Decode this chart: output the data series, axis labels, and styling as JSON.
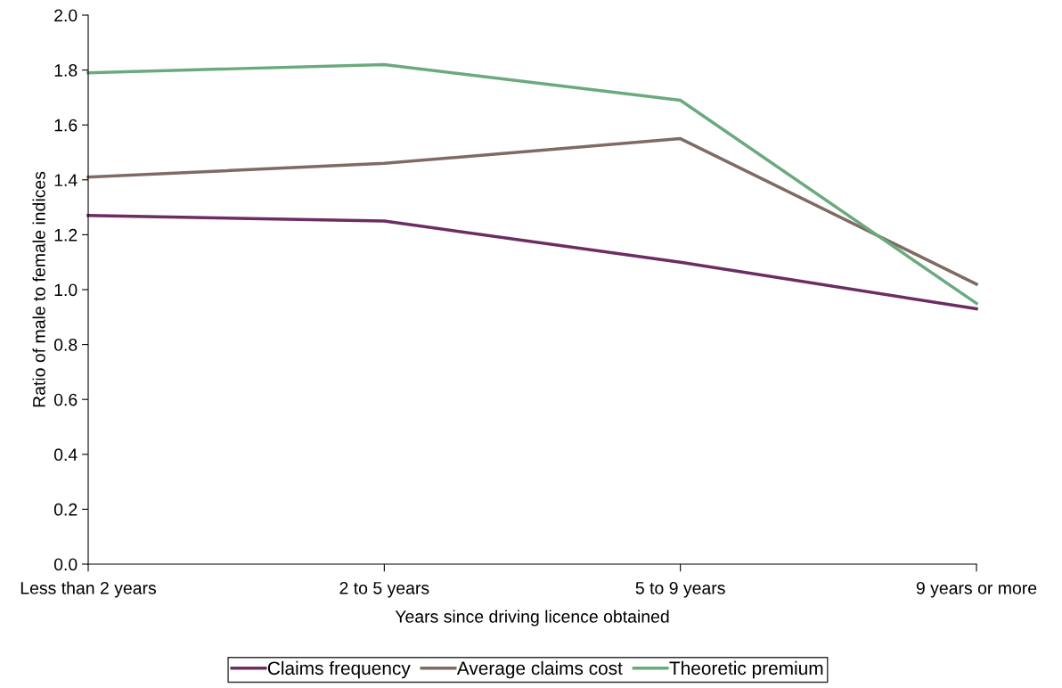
{
  "chart_data": {
    "type": "line",
    "xlabel": "Years since driving licence obtained",
    "ylabel": "Ratio of male to female indices",
    "categories": [
      "Less than 2 years",
      "2 to 5 years",
      "5 to 9 years",
      "9 years or more"
    ],
    "series": [
      {
        "name": "Claims frequency",
        "color": "#6b2d62",
        "values": [
          1.27,
          1.25,
          1.1,
          0.93
        ]
      },
      {
        "name": "Average claims cost",
        "color": "#7f6b63",
        "values": [
          1.41,
          1.46,
          1.55,
          1.02
        ]
      },
      {
        "name": "Theoretic premium",
        "color": "#6aaa7d",
        "values": [
          1.79,
          1.82,
          1.69,
          0.95
        ]
      }
    ],
    "ylim": [
      0,
      2.0
    ],
    "yticks": [
      {
        "value": 0,
        "label": "0.0"
      },
      {
        "value": 0.2,
        "label": "0.2"
      },
      {
        "value": 0.4,
        "label": "0.4"
      },
      {
        "value": 0.6,
        "label": "0.6"
      },
      {
        "value": 0.8,
        "label": "0.8"
      },
      {
        "value": 1.0,
        "label": "1.0"
      },
      {
        "value": 1.2,
        "label": "1.2"
      },
      {
        "value": 1.4,
        "label": "1.4"
      },
      {
        "value": 1.6,
        "label": "1.6"
      },
      {
        "value": 1.8,
        "label": "1.8"
      },
      {
        "value": 2.0,
        "label": "2.0"
      }
    ],
    "grid": false,
    "legend": "bottom",
    "marker": "none",
    "line_style": "solid"
  }
}
